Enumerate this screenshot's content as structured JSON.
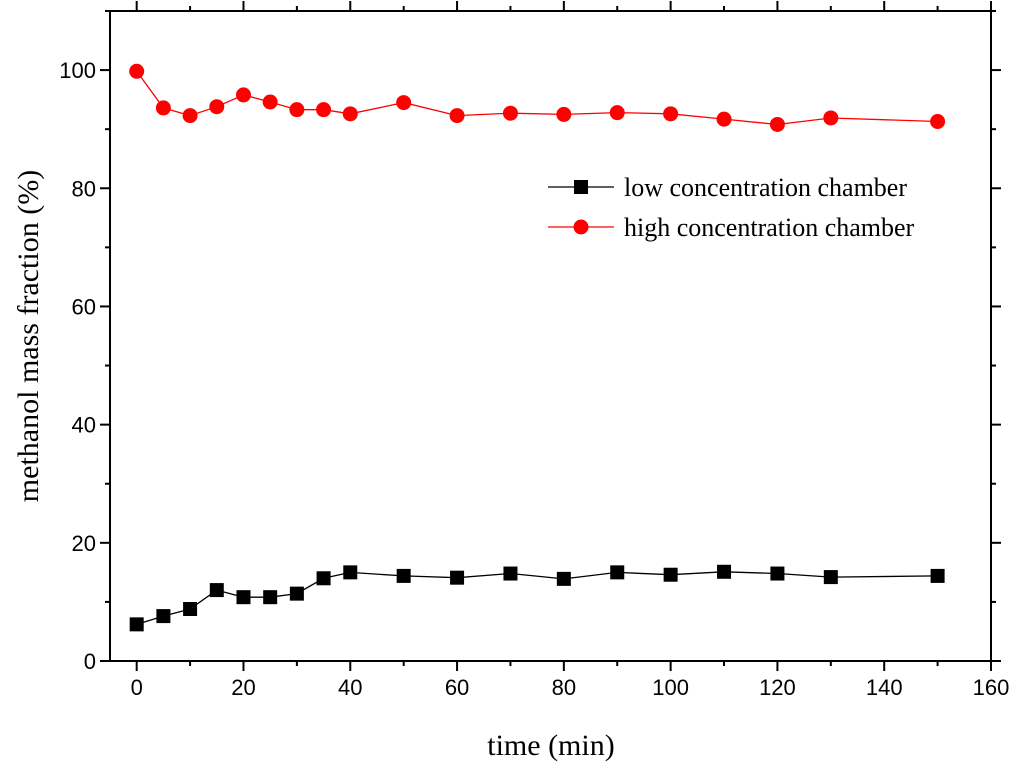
{
  "chart_data": {
    "type": "line",
    "title": "",
    "xlabel": "time (min)",
    "ylabel": "methanol mass fraction (%)",
    "xlim": [
      -5,
      160
    ],
    "ylim": [
      0,
      110
    ],
    "xticks": [
      0,
      20,
      40,
      60,
      80,
      100,
      120,
      140,
      160
    ],
    "yticks": [
      0,
      20,
      40,
      60,
      80,
      100
    ],
    "grid": false,
    "legend_position": "upper-right",
    "x": [
      0,
      5,
      10,
      15,
      20,
      25,
      30,
      35,
      40,
      50,
      60,
      70,
      80,
      90,
      100,
      110,
      120,
      130,
      150
    ],
    "series": [
      {
        "name": "low concentration chamber",
        "color": "#000000",
        "marker": "square",
        "values": [
          6.2,
          7.6,
          8.8,
          12.0,
          10.8,
          10.8,
          11.4,
          14.0,
          15.0,
          14.4,
          14.1,
          14.8,
          13.9,
          15.0,
          14.6,
          15.1,
          14.8,
          14.2,
          14.4
        ]
      },
      {
        "name": "high concentration chamber",
        "color": "#ff0000",
        "marker": "circle",
        "values": [
          99.8,
          93.6,
          92.3,
          93.8,
          95.8,
          94.6,
          93.3,
          93.3,
          92.6,
          94.5,
          92.3,
          92.7,
          92.5,
          92.8,
          92.6,
          91.7,
          90.8,
          91.9,
          91.3
        ]
      }
    ]
  }
}
